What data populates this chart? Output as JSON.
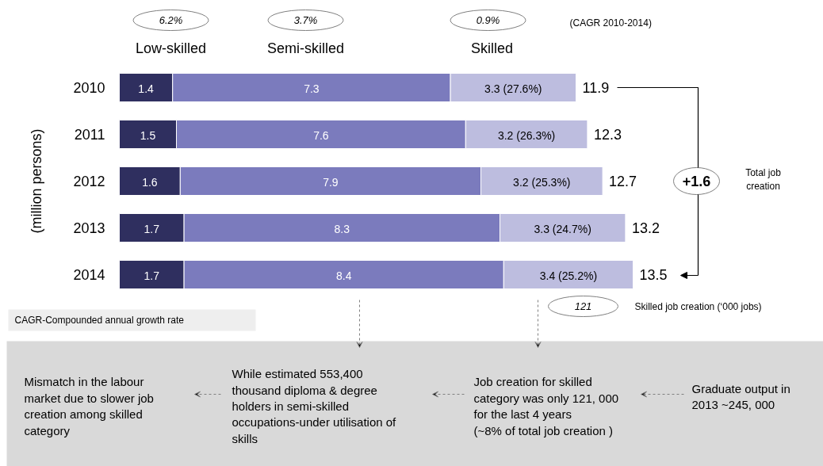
{
  "chart_data": {
    "type": "bar",
    "orientation": "horizontal",
    "stacked": true,
    "legend": "top",
    "ylabel": "(million persons)",
    "categories": [
      "2010",
      "2011",
      "2012",
      "2013",
      "2014"
    ],
    "series": [
      {
        "name": "Low-skilled",
        "color": "#2f2f5f",
        "values": [
          1.4,
          1.5,
          1.6,
          1.7,
          1.7
        ],
        "value_labels": [
          "1.4",
          "1.5",
          "1.6",
          "1.7",
          "1.7"
        ]
      },
      {
        "name": "Semi-skilled",
        "color": "#7b7bbd",
        "values": [
          7.3,
          7.6,
          7.9,
          8.3,
          8.4
        ],
        "value_labels": [
          "7.3",
          "7.6",
          "7.9",
          "8.3",
          "8.4"
        ]
      },
      {
        "name": "Skilled",
        "color": "#bdbddf",
        "values": [
          3.3,
          3.2,
          3.2,
          3.3,
          3.4
        ],
        "value_labels": [
          "3.3 (27.6%)",
          "3.2 (26.3%)",
          "3.2 (25.3%)",
          "3.3 (24.7%)",
          "3.4 (25.2%)"
        ]
      }
    ],
    "totals": [
      "11.9",
      "12.3",
      "12.7",
      "13.2",
      "13.5"
    ],
    "annotations": [
      "6.2%",
      "3.7%",
      "0.9%",
      "(CAGR  2010-2014)",
      "+1.6",
      "Total job\ncreation",
      "121",
      "Skilled  job creation (‘000 jobs)",
      "CAGR-Compounded  annual growth rate",
      "Mismatch in the labour\nmarket due to slower job\ncreation among skilled\ncategory",
      "While estimated 553,400\nthousand diploma & degree\nholders in semi-skilled\noccupations-under utilisation of\nskills",
      "Job creation  for skilled\ncategory was only 121, 000\nfor the last  4 years\n(~8% of total job creation )",
      "Graduate output  in\n2013 ~245, 000"
    ]
  }
}
